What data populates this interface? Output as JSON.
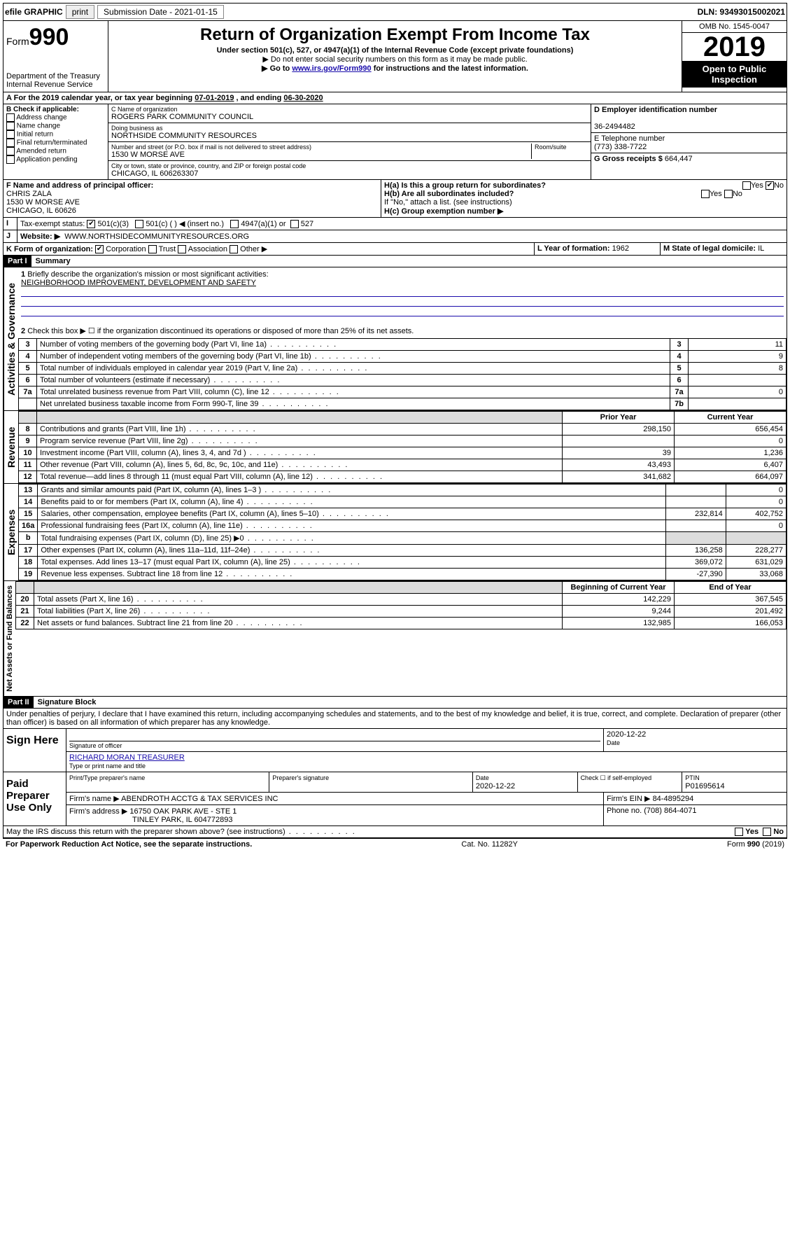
{
  "topbar": {
    "efile": "efile GRAPHIC",
    "print": "print",
    "sub_label": "Submission Date - ",
    "sub_date": "2021-01-15",
    "dln": "DLN: 93493015002021"
  },
  "header": {
    "form_label": "Form",
    "form_no": "990",
    "dept": "Department of the Treasury\nInternal Revenue Service",
    "title": "Return of Organization Exempt From Income Tax",
    "sub1": "Under section 501(c), 527, or 4947(a)(1) of the Internal Revenue Code (except private foundations)",
    "sub2": "▶ Do not enter social security numbers on this form as it may be made public.",
    "sub3_pre": "▶ Go to ",
    "sub3_link": "www.irs.gov/Form990",
    "sub3_post": " for instructions and the latest information.",
    "omb": "OMB No. 1545-0047",
    "year": "2019",
    "open": "Open to Public Inspection"
  },
  "A": {
    "text": "For the 2019 calendar year, or tax year beginning ",
    "begin": "07-01-2019",
    "mid": " , and ending ",
    "end": "06-30-2020"
  },
  "B": {
    "label": "B Check if applicable:",
    "opts": [
      "Address change",
      "Name change",
      "Initial return",
      "Final return/terminated",
      "Amended return",
      "Application pending"
    ]
  },
  "C": {
    "name_label": "C Name of organization",
    "name": "ROGERS PARK COMMUNITY COUNCIL",
    "dba_label": "Doing business as",
    "dba": "NORTHSIDE COMMUNITY RESOURCES",
    "addr_label": "Number and street (or P.O. box if mail is not delivered to street address)",
    "room_label": "Room/suite",
    "addr": "1530 W MORSE AVE",
    "city_label": "City or town, state or province, country, and ZIP or foreign postal code",
    "city": "CHICAGO, IL  606263307"
  },
  "D": {
    "label": "D Employer identification number",
    "val": "36-2494482"
  },
  "E": {
    "label": "E Telephone number",
    "val": "(773) 338-7722"
  },
  "G": {
    "label": "G Gross receipts $ ",
    "val": "664,447"
  },
  "F": {
    "label": "F  Name and address of principal officer:",
    "name": "CHRIS ZALA",
    "addr1": "1530 W MORSE AVE",
    "addr2": "CHICAGO, IL  60626"
  },
  "H": {
    "a": "H(a)  Is this a group return for subordinates?",
    "b": "H(b)  Are all subordinates included?",
    "b_note": "If \"No,\" attach a list. (see instructions)",
    "c": "H(c)  Group exemption number ▶",
    "yes": "Yes",
    "no": "No"
  },
  "I": {
    "label": "Tax-exempt status:",
    "c3": "501(c)(3)",
    "c": "501(c) (  ) ◀ (insert no.)",
    "a1": "4947(a)(1) or",
    "s527": "527"
  },
  "J": {
    "label": "Website: ▶",
    "val": "WWW.NORTHSIDECOMMUNITYRESOURCES.ORG"
  },
  "K": {
    "label": "K Form of organization:",
    "corp": "Corporation",
    "trust": "Trust",
    "assoc": "Association",
    "other": "Other ▶"
  },
  "L": {
    "label": "L Year of formation: ",
    "val": "1962"
  },
  "M": {
    "label": "M State of legal domicile: ",
    "val": "IL"
  },
  "part1": {
    "title": "Part I",
    "sub": "Summary"
  },
  "summary": {
    "q1": "Briefly describe the organization's mission or most significant activities:",
    "q1a": "NEIGHBORHOOD IMPROVEMENT, DEVELOPMENT AND SAFETY",
    "q2": "Check this box ▶ ☐ if the organization discontinued its operations or disposed of more than 25% of its net assets.",
    "lines": [
      {
        "n": "3",
        "t": "Number of voting members of the governing body (Part VI, line 1a)",
        "box": "3",
        "v": "11"
      },
      {
        "n": "4",
        "t": "Number of independent voting members of the governing body (Part VI, line 1b)",
        "box": "4",
        "v": "9"
      },
      {
        "n": "5",
        "t": "Total number of individuals employed in calendar year 2019 (Part V, line 2a)",
        "box": "5",
        "v": "8"
      },
      {
        "n": "6",
        "t": "Total number of volunteers (estimate if necessary)",
        "box": "6",
        "v": ""
      },
      {
        "n": "7a",
        "t": "Total unrelated business revenue from Part VIII, column (C), line 12",
        "box": "7a",
        "v": "0"
      },
      {
        "n": "",
        "t": "Net unrelated business taxable income from Form 990-T, line 39",
        "box": "7b",
        "v": ""
      }
    ]
  },
  "rev_hdr": {
    "prior": "Prior Year",
    "curr": "Current Year"
  },
  "revenue": [
    {
      "n": "8",
      "t": "Contributions and grants (Part VIII, line 1h)",
      "p": "298,150",
      "c": "656,454"
    },
    {
      "n": "9",
      "t": "Program service revenue (Part VIII, line 2g)",
      "p": "",
      "c": "0"
    },
    {
      "n": "10",
      "t": "Investment income (Part VIII, column (A), lines 3, 4, and 7d )",
      "p": "39",
      "c": "1,236"
    },
    {
      "n": "11",
      "t": "Other revenue (Part VIII, column (A), lines 5, 6d, 8c, 9c, 10c, and 11e)",
      "p": "43,493",
      "c": "6,407"
    },
    {
      "n": "12",
      "t": "Total revenue—add lines 8 through 11 (must equal Part VIII, column (A), line 12)",
      "p": "341,682",
      "c": "664,097"
    }
  ],
  "expenses": [
    {
      "n": "13",
      "t": "Grants and similar amounts paid (Part IX, column (A), lines 1–3 )",
      "p": "",
      "c": "0"
    },
    {
      "n": "14",
      "t": "Benefits paid to or for members (Part IX, column (A), line 4)",
      "p": "",
      "c": "0"
    },
    {
      "n": "15",
      "t": "Salaries, other compensation, employee benefits (Part IX, column (A), lines 5–10)",
      "p": "232,814",
      "c": "402,752"
    },
    {
      "n": "16a",
      "t": "Professional fundraising fees (Part IX, column (A), line 11e)",
      "p": "",
      "c": "0"
    },
    {
      "n": "b",
      "t": "Total fundraising expenses (Part IX, column (D), line 25) ▶0",
      "p": "GRAY",
      "c": "GRAY"
    },
    {
      "n": "17",
      "t": "Other expenses (Part IX, column (A), lines 11a–11d, 11f–24e)",
      "p": "136,258",
      "c": "228,277"
    },
    {
      "n": "18",
      "t": "Total expenses. Add lines 13–17 (must equal Part IX, column (A), line 25)",
      "p": "369,072",
      "c": "631,029"
    },
    {
      "n": "19",
      "t": "Revenue less expenses. Subtract line 18 from line 12",
      "p": "-27,390",
      "c": "33,068"
    }
  ],
  "na_hdr": {
    "beg": "Beginning of Current Year",
    "end": "End of Year"
  },
  "netassets": [
    {
      "n": "20",
      "t": "Total assets (Part X, line 16)",
      "p": "142,229",
      "c": "367,545"
    },
    {
      "n": "21",
      "t": "Total liabilities (Part X, line 26)",
      "p": "9,244",
      "c": "201,492"
    },
    {
      "n": "22",
      "t": "Net assets or fund balances. Subtract line 21 from line 20",
      "p": "132,985",
      "c": "166,053"
    }
  ],
  "sidelabels": {
    "gov": "Activities & Governance",
    "rev": "Revenue",
    "exp": "Expenses",
    "na": "Net Assets or Fund Balances"
  },
  "part2": {
    "title": "Part II",
    "sub": "Signature Block"
  },
  "perjury": "Under penalties of perjury, I declare that I have examined this return, including accompanying schedules and statements, and to the best of my knowledge and belief, it is true, correct, and complete. Declaration of preparer (other than officer) is based on all information of which preparer has any knowledge.",
  "sign": {
    "here": "Sign Here",
    "sig_label": "Signature of officer",
    "date": "2020-12-22",
    "date_label": "Date",
    "name": "RICHARD MORAN  TREASURER",
    "name_label": "Type or print name and title"
  },
  "paid": {
    "label": "Paid Preparer Use Only",
    "h_name": "Print/Type preparer's name",
    "h_sig": "Preparer's signature",
    "h_date": "Date",
    "h_check": "Check ☐ if self-employed",
    "h_ptin": "PTIN",
    "date": "2020-12-22",
    "ptin": "P01695614",
    "firm_label": "Firm's name    ▶ ",
    "firm": "ABENDROTH ACCTG & TAX SERVICES INC",
    "ein_label": "Firm's EIN ▶ ",
    "ein": "84-4895294",
    "addr_label": "Firm's address ▶ ",
    "addr1": "16750 OAK PARK AVE - STE 1",
    "addr2": "TINLEY PARK, IL  604772893",
    "phone_label": "Phone no. ",
    "phone": "(708) 864-4071"
  },
  "discuss": "May the IRS discuss this return with the preparer shown above? (see instructions)",
  "footer": {
    "left": "For Paperwork Reduction Act Notice, see the separate instructions.",
    "mid": "Cat. No. 11282Y",
    "right": "Form 990 (2019)"
  }
}
